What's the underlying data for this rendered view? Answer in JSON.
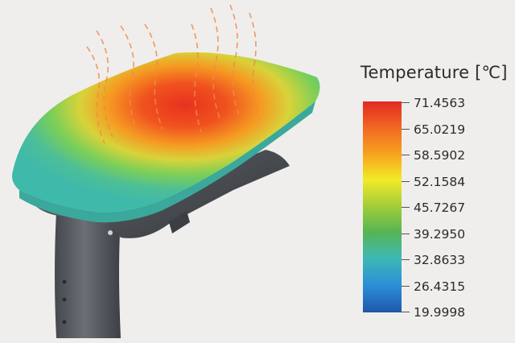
{
  "legend": {
    "title": "Temperature [℃]",
    "values": [
      "71.4563",
      "65.0219",
      "58.5902",
      "52.1584",
      "45.7267",
      "39.2950",
      "32.8633",
      "26.4315",
      "19.9998"
    ],
    "colors": [
      "#e32a22",
      "#f26a22",
      "#f7a31d",
      "#f2ea27",
      "#9fcd3a",
      "#55b553",
      "#3fb9b3",
      "#2b8fd8",
      "#1f57a8"
    ]
  },
  "heat_colors": {
    "hot": "#e8321f",
    "warm": "#f59a22",
    "mid": "#c8d83a",
    "cool": "#4dbf96",
    "edge": "#3fb9aa",
    "wave": "#f08a4a"
  },
  "lamp": {
    "pole_color": "#5d6167",
    "housing_color": "#4a4e54"
  }
}
